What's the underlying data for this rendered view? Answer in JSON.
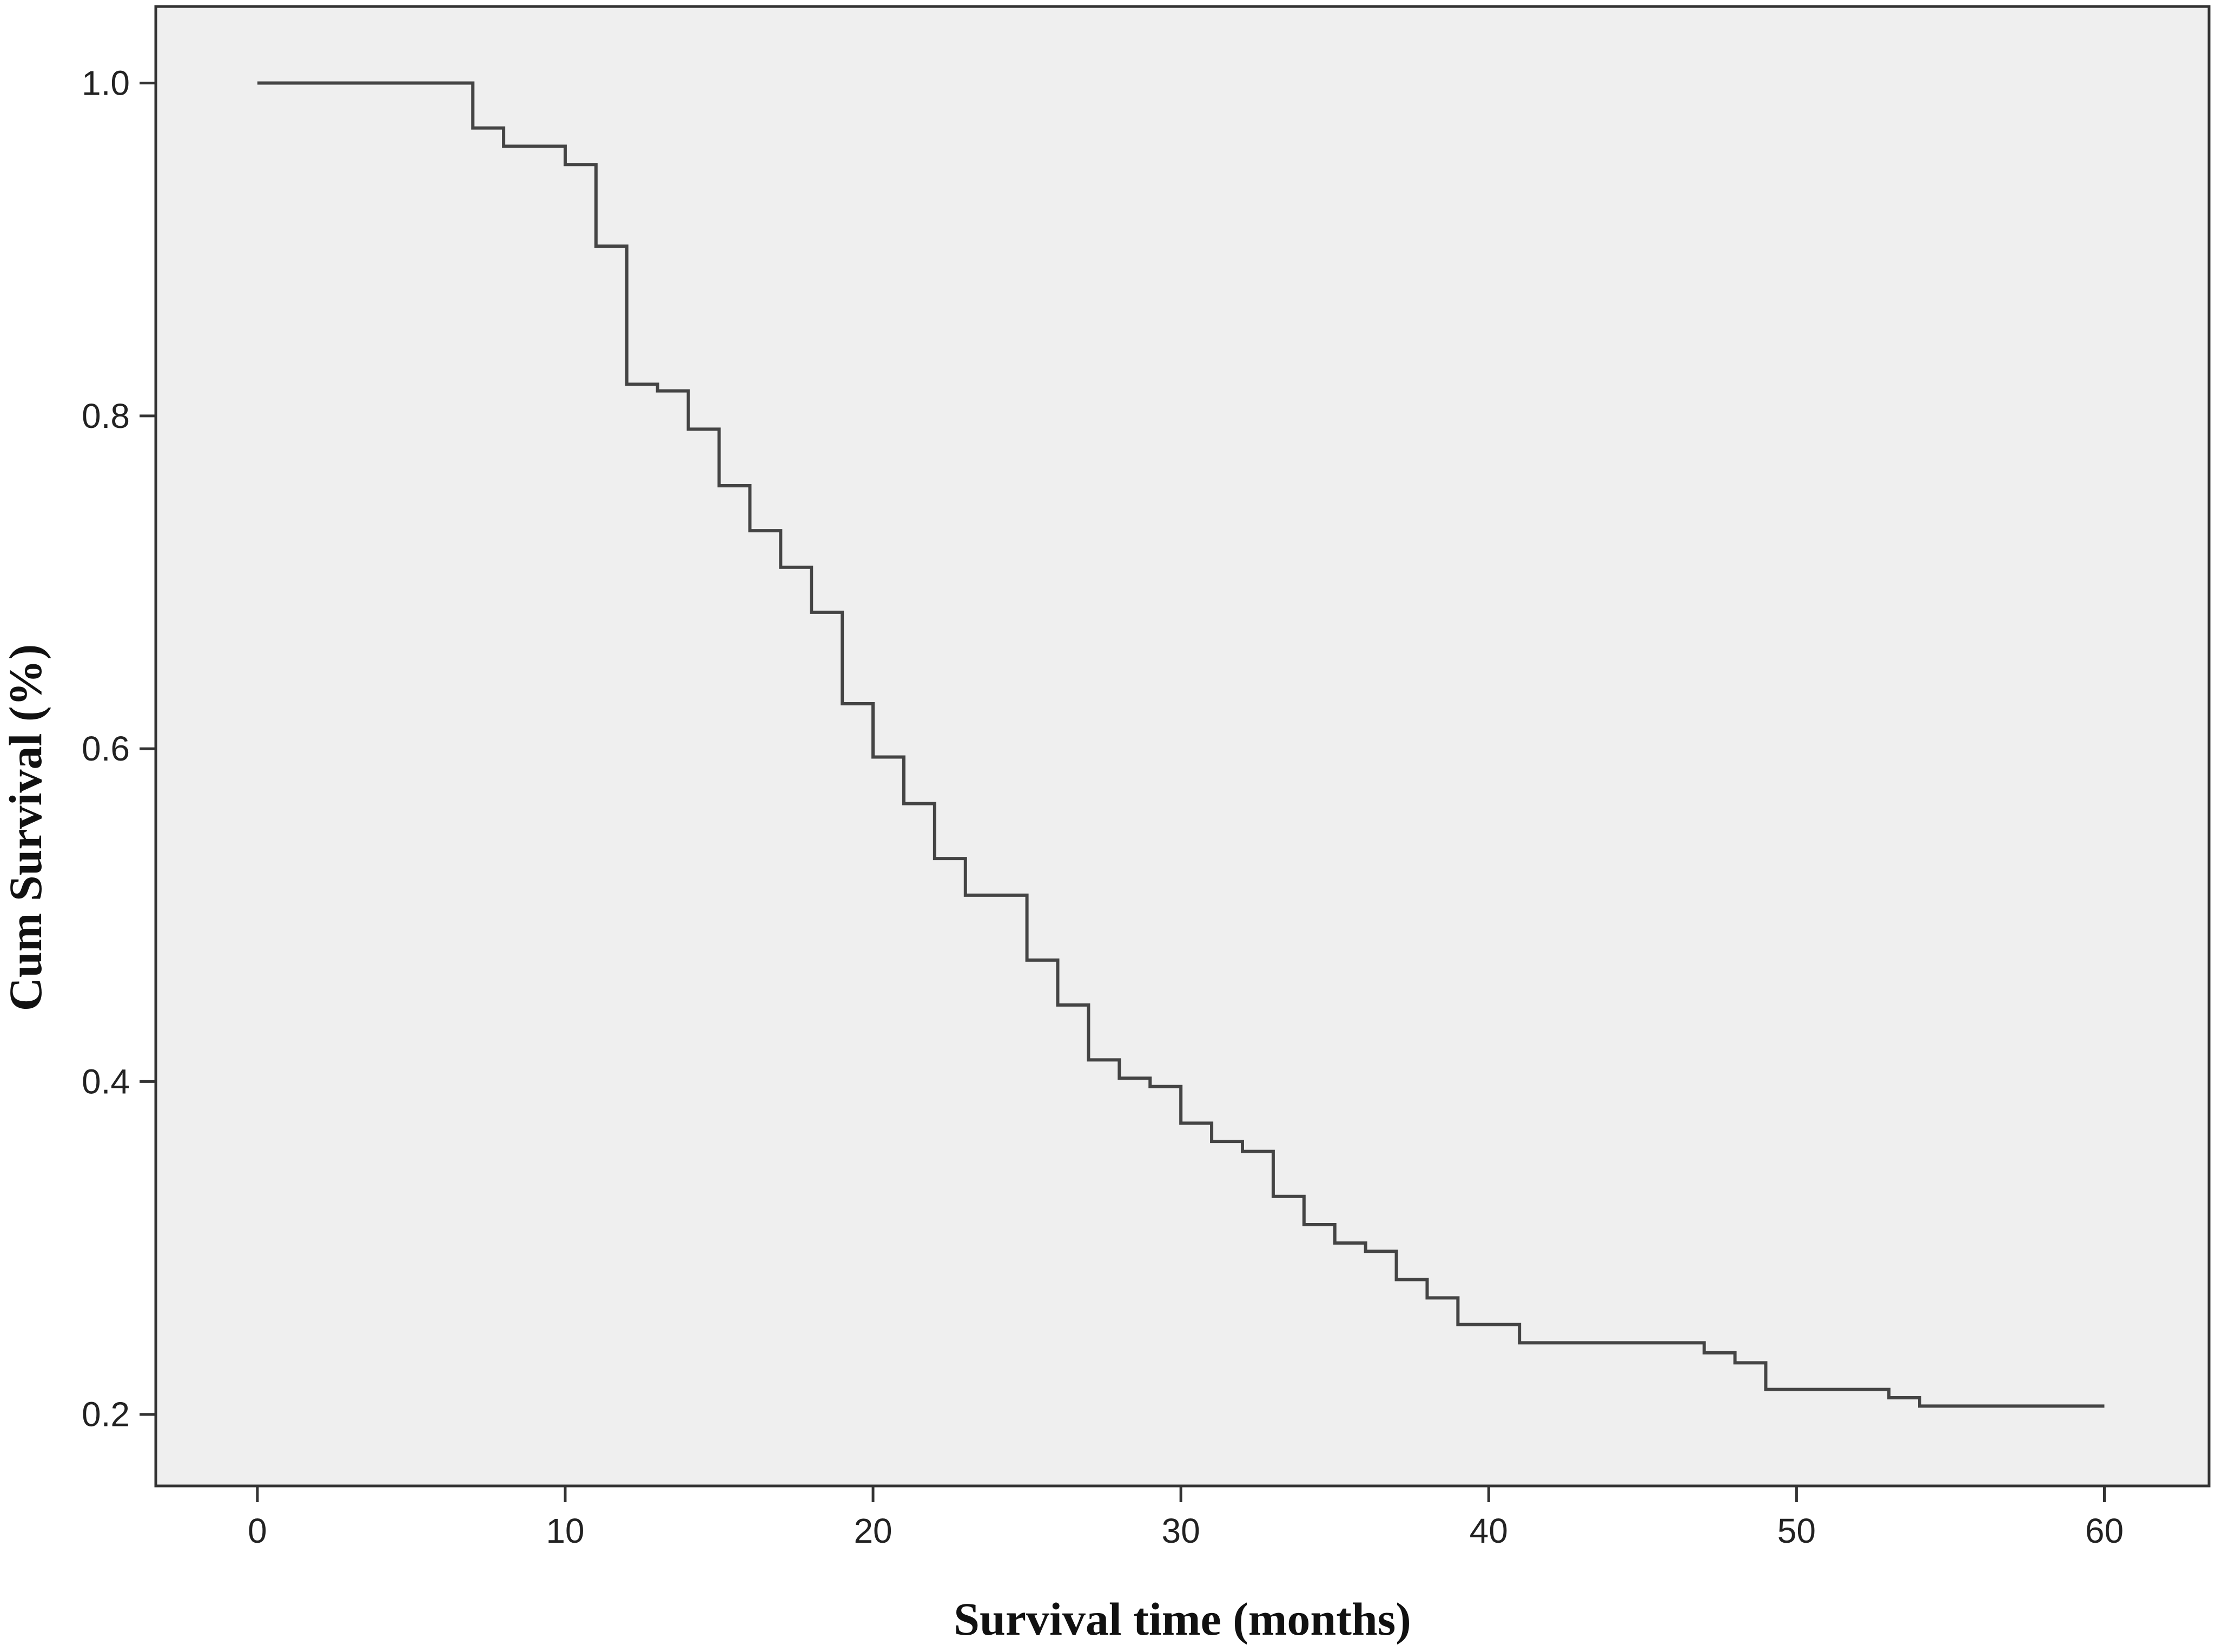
{
  "chart_data": {
    "type": "line",
    "step": true,
    "title": "",
    "xlabel": "Survival time (months)",
    "ylabel": "Cum Survival (%)",
    "xlim": [
      -3.3,
      63.4
    ],
    "ylim": [
      0.157,
      1.046
    ],
    "xticks": [
      0,
      10,
      20,
      30,
      40,
      50,
      60
    ],
    "yticks": [
      0.2,
      0.4,
      0.6,
      0.8,
      1.0
    ],
    "xtick_labels": [
      "0",
      "10",
      "20",
      "30",
      "40",
      "50",
      "60"
    ],
    "ytick_labels": [
      "0.2",
      "0.4",
      "0.6",
      "0.8",
      "1.0"
    ],
    "grid": false,
    "legend": "none",
    "colors": {
      "plot_background": "#efefef",
      "line": "#444444",
      "frame": "#333333"
    },
    "series": [
      {
        "x": [
          0,
          7,
          8,
          10,
          11,
          12,
          13,
          14,
          15,
          16,
          17,
          18,
          19,
          20,
          21,
          22,
          23,
          25,
          26,
          27,
          28,
          29,
          30,
          31,
          32,
          33,
          34,
          35,
          36,
          37,
          38,
          39,
          41,
          47,
          48,
          49,
          53,
          54,
          60
        ],
        "y": [
          1.0,
          0.973,
          0.962,
          0.951,
          0.902,
          0.819,
          0.815,
          0.792,
          0.758,
          0.731,
          0.709,
          0.682,
          0.627,
          0.595,
          0.567,
          0.534,
          0.512,
          0.473,
          0.446,
          0.413,
          0.402,
          0.397,
          0.375,
          0.364,
          0.358,
          0.331,
          0.314,
          0.303,
          0.298,
          0.281,
          0.27,
          0.254,
          0.243,
          0.237,
          0.231,
          0.215,
          0.21,
          0.205,
          0.205
        ]
      }
    ]
  }
}
